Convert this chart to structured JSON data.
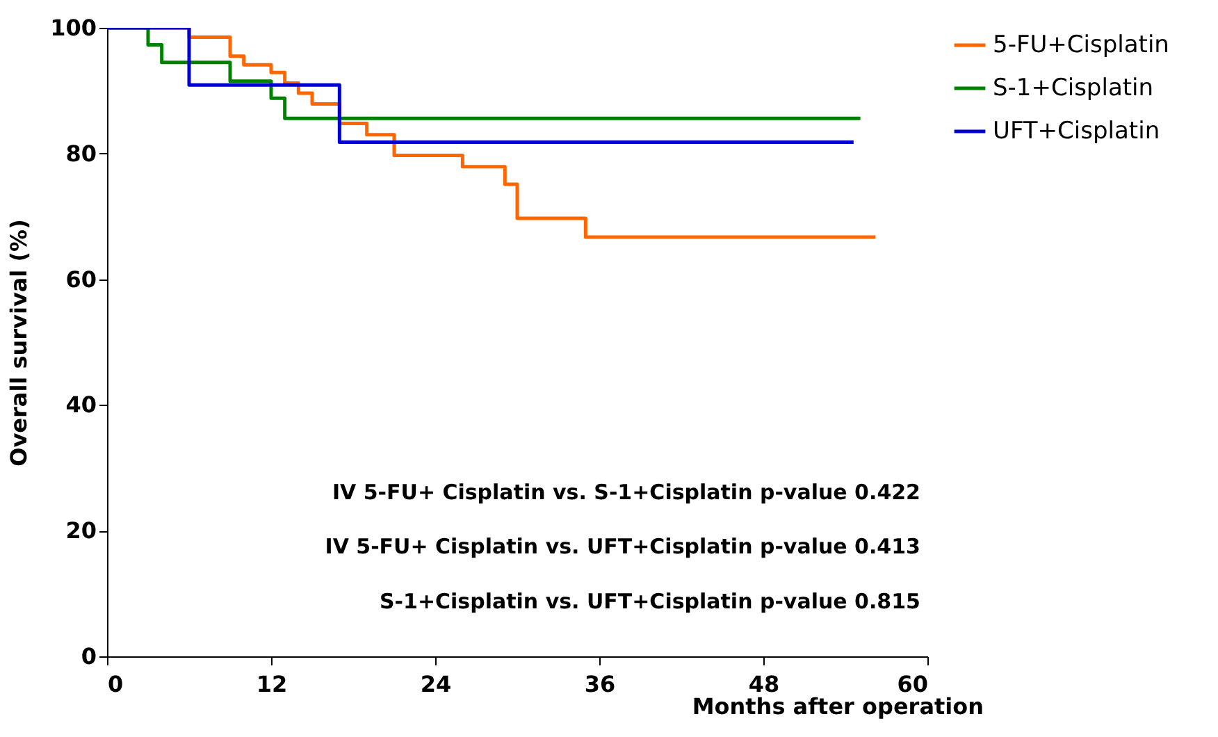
{
  "chart_data": {
    "type": "step",
    "xlabel": "Months after operation",
    "ylabel": "Overall survival (%)",
    "xlim": [
      0,
      60
    ],
    "xticks": [
      0,
      12,
      24,
      36,
      48,
      60
    ],
    "ylim": [
      0,
      100
    ],
    "yticks": [
      0,
      20,
      40,
      60,
      80,
      100
    ],
    "grid": false,
    "legend": "right",
    "line_style": "solid",
    "series": [
      {
        "name": "5-FU+Cisplatin",
        "color": "#ff6600",
        "x": [
          0,
          6.0,
          9.0,
          10.0,
          12.0,
          13.0,
          14.0,
          15.0,
          17.0,
          19.0,
          21.0,
          26.0,
          29.1,
          30.0,
          35.0,
          56.2
        ],
        "values": [
          100,
          98.5,
          95.5,
          94.1,
          92.9,
          91.2,
          89.6,
          87.9,
          84.8,
          83.0,
          79.7,
          77.9,
          75.1,
          69.7,
          66.7,
          66.7
        ]
      },
      {
        "name": "S-1+Cisplatin",
        "color": "#008000",
        "x": [
          0,
          3.0,
          4.0,
          9.0,
          12.0,
          13.0,
          55.1
        ],
        "values": [
          100,
          97.3,
          94.5,
          91.5,
          88.8,
          85.6,
          85.6
        ]
      },
      {
        "name": "UFT+Cisplatin",
        "color": "#0000cc",
        "x": [
          0,
          6.0,
          17.0,
          54.6
        ],
        "values": [
          100,
          90.9,
          81.8,
          81.8
        ]
      }
    ],
    "annotations": [
      "IV 5-FU+ Cisplatin vs. S-1+Cisplatin    p-value 0.422",
      "IV 5-FU+ Cisplatin vs. UFT+Cisplatin  p-value 0.413",
      "S-1+Cisplatin vs. UFT+Cisplatin  p-value 0.815"
    ]
  }
}
